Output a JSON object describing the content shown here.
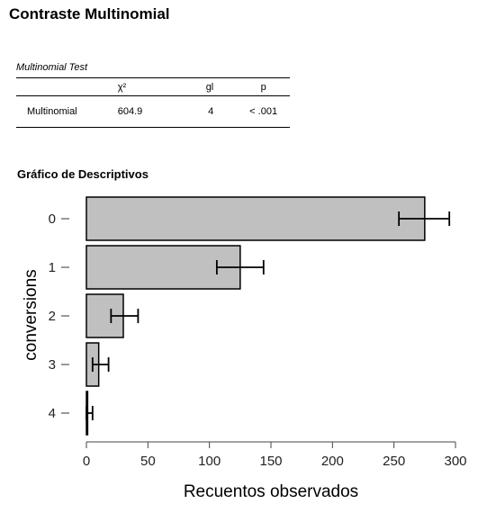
{
  "page": {
    "title": "Contraste Multinomial"
  },
  "table": {
    "caption": "Multinomial Test",
    "headers": [
      "",
      "χ²",
      "gl",
      "p"
    ],
    "rows": [
      {
        "test": "Multinomial",
        "chi2": "604.9",
        "df": "4",
        "p": "< .001"
      }
    ]
  },
  "plot": {
    "title": "Gráfico de Descriptivos"
  },
  "chart_data": {
    "type": "bar",
    "orientation": "horizontal",
    "categories": [
      "0",
      "1",
      "2",
      "3",
      "4"
    ],
    "values": [
      275,
      125,
      30,
      10,
      1
    ],
    "ci_lower": [
      254,
      106,
      20,
      5,
      0
    ],
    "ci_upper": [
      295,
      144,
      42,
      18,
      5
    ],
    "xlabel": "Recuentos observados",
    "ylabel": "conversions",
    "xlim": [
      0,
      300
    ],
    "x_ticks": [
      0,
      50,
      100,
      150,
      200,
      250,
      300
    ],
    "grid": false,
    "bar_fill": "#c0c0c0",
    "bar_stroke": "#000000"
  }
}
